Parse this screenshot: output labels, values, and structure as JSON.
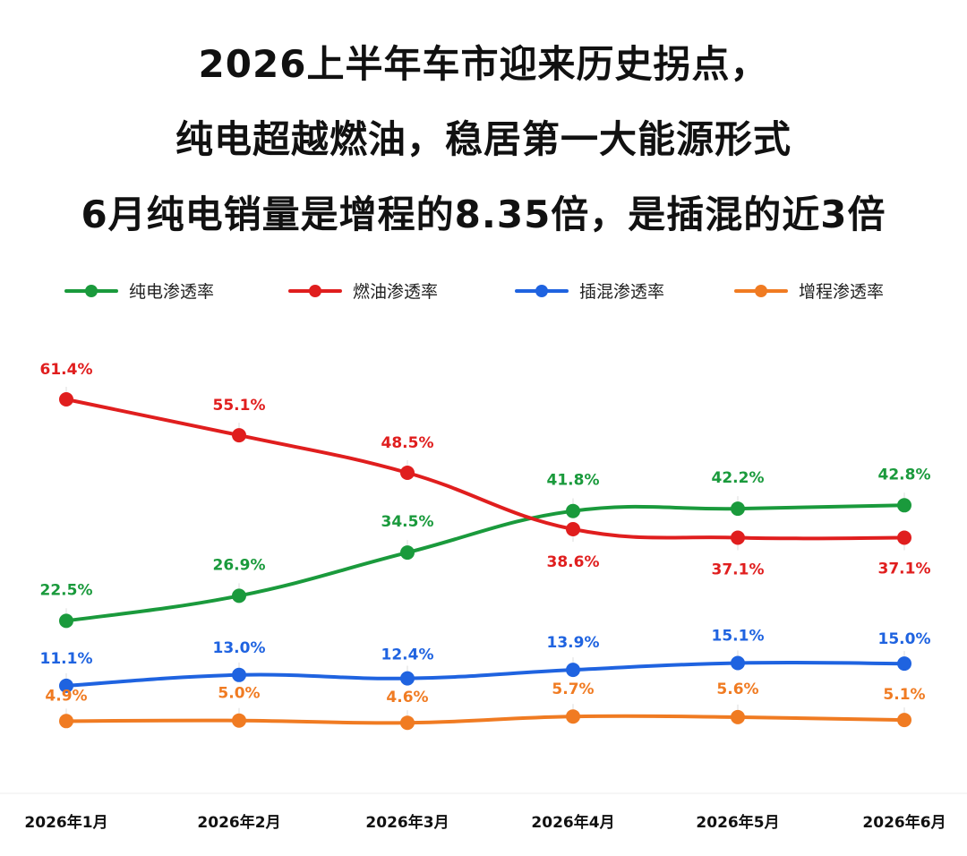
{
  "title_lines": [
    "2026上半年车市迎来历史拐点，",
    "纯电超越燃油，稳居第一大能源形式",
    "6月纯电销量是增程的8.35倍，是插混的近3倍"
  ],
  "chart_data": {
    "type": "line",
    "categories": [
      "2026年1月",
      "2026年2月",
      "2026年3月",
      "2026年4月",
      "2026年5月",
      "2026年6月"
    ],
    "ylim": [
      0,
      70
    ],
    "grid": false,
    "legend_position": "top",
    "series": [
      {
        "name": "纯电渗透率",
        "color": "#1a9a3c",
        "values": [
          22.5,
          26.9,
          34.5,
          41.8,
          42.2,
          42.8
        ],
        "labels": [
          "22.5%",
          "26.9%",
          "34.5%",
          "41.8%",
          "42.2%",
          "42.8%"
        ]
      },
      {
        "name": "燃油渗透率",
        "color": "#e01e1e",
        "values": [
          61.4,
          55.1,
          48.5,
          38.6,
          37.1,
          37.1
        ],
        "labels": [
          "61.4%",
          "55.1%",
          "48.5%",
          "38.6%",
          "37.1%",
          "37.1%"
        ]
      },
      {
        "name": "插混渗透率",
        "color": "#1f63e0",
        "values": [
          11.1,
          13.0,
          12.4,
          13.9,
          15.1,
          15.0
        ],
        "labels": [
          "11.1%",
          "13.0%",
          "12.4%",
          "13.9%",
          "15.1%",
          "15.0%"
        ]
      },
      {
        "name": "增程渗透率",
        "color": "#f07b22",
        "values": [
          4.9,
          5.0,
          4.6,
          5.7,
          5.6,
          5.1
        ],
        "labels": [
          "4.9%",
          "5.0%",
          "4.6%",
          "5.7%",
          "5.6%",
          "5.1%"
        ]
      }
    ]
  }
}
